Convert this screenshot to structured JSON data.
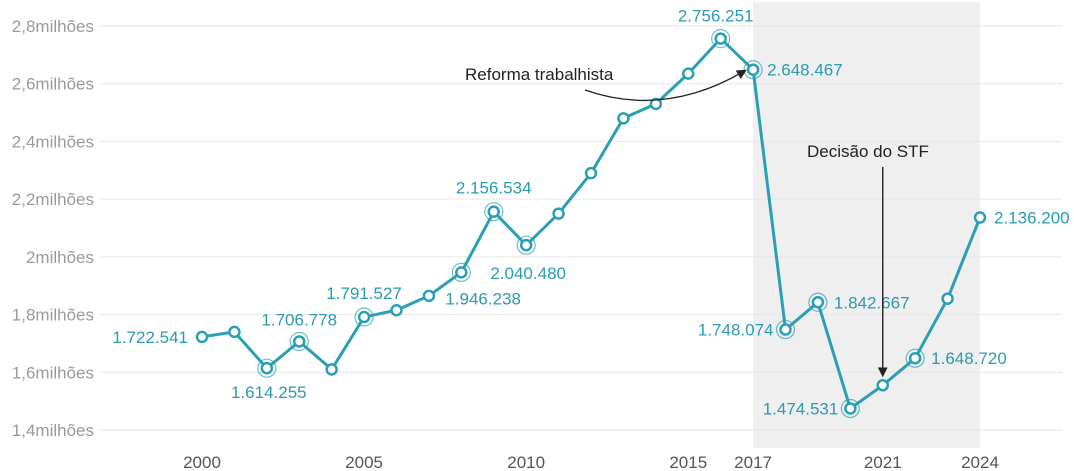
{
  "colors": {
    "line": "#2b9fb3",
    "marker_fill": "#ffffff",
    "grid": "#e6e6e6",
    "shade": "#efefef",
    "label": "#2a9bb0",
    "annotation": "#222222"
  },
  "chart_data": {
    "type": "line",
    "title": "",
    "xlabel": "",
    "ylabel": "",
    "ylim": [
      1.4,
      2.8
    ],
    "xlim": [
      2000,
      2024
    ],
    "grid": true,
    "y_ticks": [
      {
        "value": 1.4,
        "label": "1,4milhões"
      },
      {
        "value": 1.6,
        "label": "1,6milhões"
      },
      {
        "value": 1.8,
        "label": "1,8milhões"
      },
      {
        "value": 2.0,
        "label": "2milhões"
      },
      {
        "value": 2.2,
        "label": "2,2milhões"
      },
      {
        "value": 2.4,
        "label": "2,4milhões"
      },
      {
        "value": 2.6,
        "label": "2,6milhões"
      },
      {
        "value": 2.8,
        "label": "2,8milhões"
      }
    ],
    "x_ticks": [
      {
        "value": 2000,
        "label": "2000"
      },
      {
        "value": 2005,
        "label": "2005"
      },
      {
        "value": 2010,
        "label": "2010"
      },
      {
        "value": 2015,
        "label": "2015"
      },
      {
        "value": 2017,
        "label": "2017"
      },
      {
        "value": 2021,
        "label": "2021"
      },
      {
        "value": 2024,
        "label": "2024"
      }
    ],
    "shaded_range": [
      2017,
      2024
    ],
    "series": [
      {
        "points": [
          {
            "x": 2000,
            "y": 1.722541,
            "label": "1.722.541",
            "highlight": false
          },
          {
            "x": 2001,
            "y": 1.74,
            "label": "",
            "highlight": false
          },
          {
            "x": 2002,
            "y": 1.614255,
            "label": "1.614.255",
            "highlight": true
          },
          {
            "x": 2003,
            "y": 1.706778,
            "label": "1.706.778",
            "highlight": true
          },
          {
            "x": 2004,
            "y": 1.61,
            "label": "",
            "highlight": false
          },
          {
            "x": 2005,
            "y": 1.791527,
            "label": "1.791.527",
            "highlight": true
          },
          {
            "x": 2006,
            "y": 1.815,
            "label": "",
            "highlight": false
          },
          {
            "x": 2007,
            "y": 1.865,
            "label": "",
            "highlight": false
          },
          {
            "x": 2008,
            "y": 1.946238,
            "label": "1.946.238",
            "highlight": true
          },
          {
            "x": 2009,
            "y": 2.156534,
            "label": "2.156.534",
            "highlight": true
          },
          {
            "x": 2010,
            "y": 2.04048,
            "label": "2.040.480",
            "highlight": true
          },
          {
            "x": 2011,
            "y": 2.15,
            "label": "",
            "highlight": false
          },
          {
            "x": 2012,
            "y": 2.29,
            "label": "",
            "highlight": false
          },
          {
            "x": 2013,
            "y": 2.48,
            "label": "",
            "highlight": false
          },
          {
            "x": 2014,
            "y": 2.53,
            "label": "",
            "highlight": false
          },
          {
            "x": 2015,
            "y": 2.635,
            "label": "",
            "highlight": false
          },
          {
            "x": 2016,
            "y": 2.756251,
            "label": "2.756.251",
            "highlight": true
          },
          {
            "x": 2017,
            "y": 2.648467,
            "label": "2.648.467",
            "highlight": true
          },
          {
            "x": 2018,
            "y": 1.748074,
            "label": "1.748.074",
            "highlight": true
          },
          {
            "x": 2019,
            "y": 1.842667,
            "label": "1.842.667",
            "highlight": true
          },
          {
            "x": 2020,
            "y": 1.474531,
            "label": "1.474.531",
            "highlight": true
          },
          {
            "x": 2021,
            "y": 1.555,
            "label": "",
            "highlight": false
          },
          {
            "x": 2022,
            "y": 1.64872,
            "label": "1.648.720",
            "highlight": true
          },
          {
            "x": 2023,
            "y": 1.855,
            "label": "",
            "highlight": false
          },
          {
            "x": 2024,
            "y": 2.1362,
            "label": "2.136.200",
            "highlight": false
          }
        ]
      }
    ],
    "annotations": [
      {
        "text": "Reforma trabalhista",
        "target_x": 2017
      },
      {
        "text": "Decisão do STF",
        "target_x": 2021
      }
    ]
  }
}
